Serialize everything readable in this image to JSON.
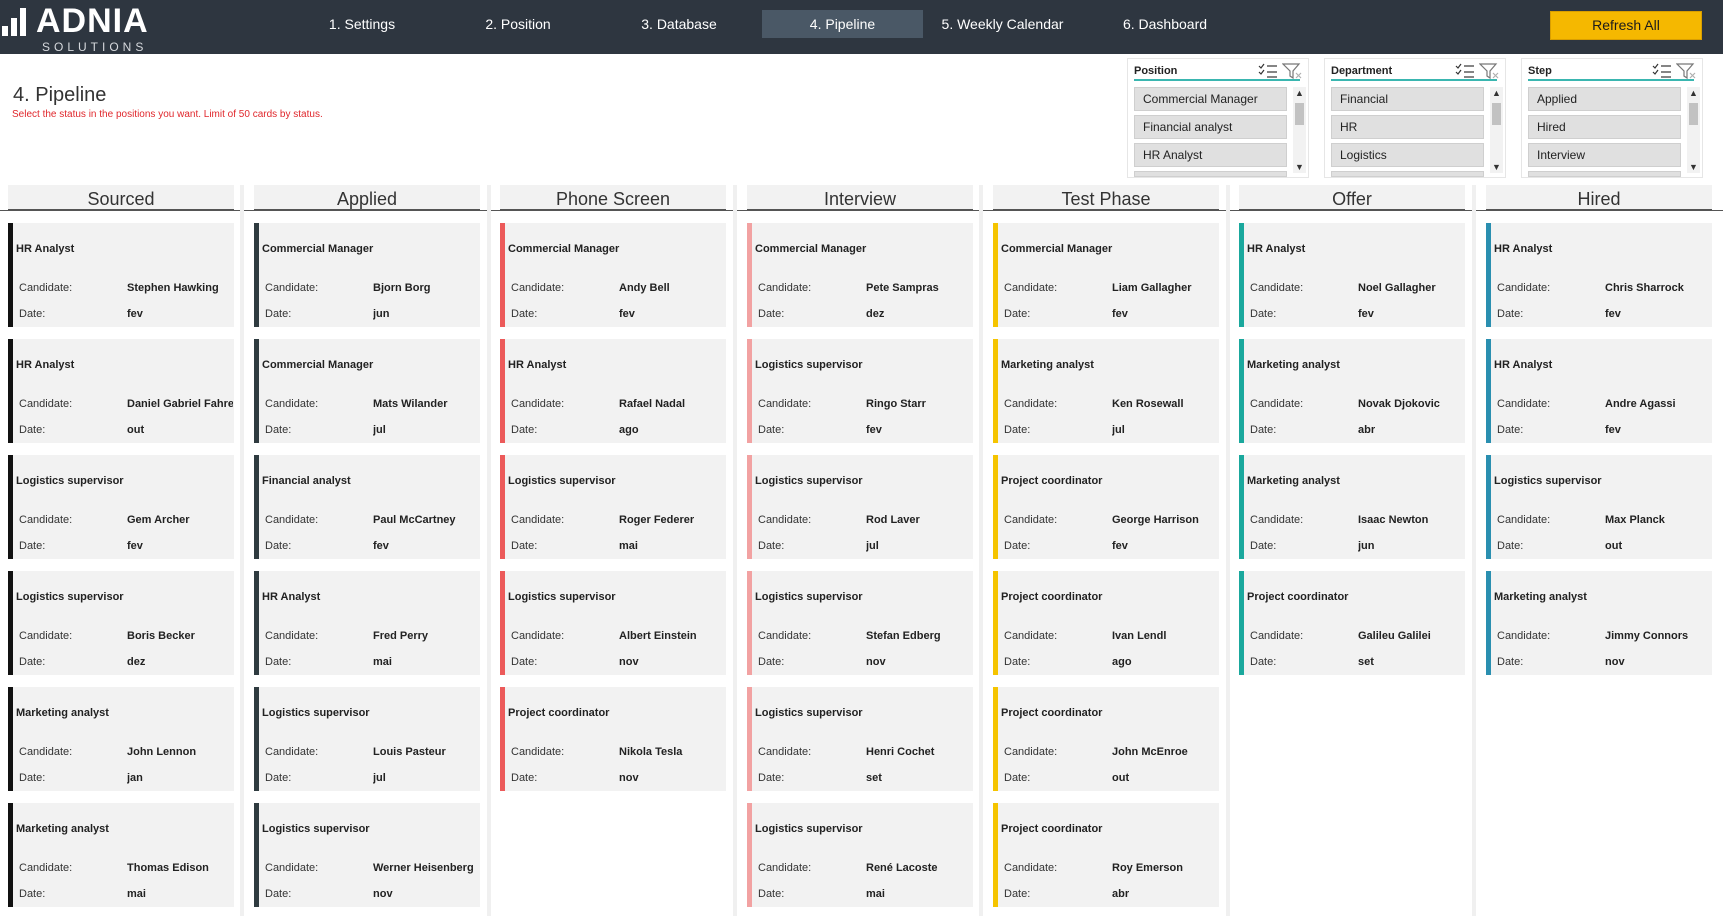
{
  "brand": {
    "name": "ADNIA",
    "tagline": "SOLUTIONS"
  },
  "nav": {
    "tabs": [
      {
        "label": "1. Settings"
      },
      {
        "label": "2. Position"
      },
      {
        "label": "3. Database"
      },
      {
        "label": "4. Pipeline",
        "active": true
      },
      {
        "label": "5. Weekly Calendar"
      },
      {
        "label": "6. Dashboard"
      }
    ],
    "refresh_label": "Refresh All"
  },
  "page": {
    "title": "4. Pipeline",
    "subtitle": "Select the status in the positions you want.  Limit of 50 cards by status."
  },
  "slicers": [
    {
      "title": "Position",
      "items": [
        "Commercial Manager",
        "Financial analyst",
        "HR Analyst"
      ]
    },
    {
      "title": "Department",
      "items": [
        "Financial",
        "HR",
        "Logistics"
      ]
    },
    {
      "title": "Step",
      "items": [
        "Applied",
        "Hired",
        "Interview"
      ]
    }
  ],
  "labels": {
    "candidate": "Candidate:",
    "date": "Date:"
  },
  "colors": {
    "sourced": "#111111",
    "applied": "#2f3b40",
    "phone": "#ec5a5a",
    "interview": "#f2a2a2",
    "test": "#f5c400",
    "offer": "#1aa89d",
    "hired": "#2a8fb0"
  },
  "columns": [
    {
      "name": "Sourced",
      "cards": [
        {
          "position": "HR Analyst",
          "candidate": "Stephen Hawking",
          "date": "fev"
        },
        {
          "position": "HR Analyst",
          "candidate": "Daniel Gabriel Fahrenheit",
          "date": "out"
        },
        {
          "position": "Logistics supervisor",
          "candidate": "Gem Archer",
          "date": "fev"
        },
        {
          "position": "Logistics supervisor",
          "candidate": "Boris Becker",
          "date": "dez"
        },
        {
          "position": "Marketing analyst",
          "candidate": " John Lennon",
          "date": "jan"
        },
        {
          "position": "Marketing analyst",
          "candidate": "Thomas Edison",
          "date": "mai"
        }
      ]
    },
    {
      "name": "Applied",
      "cards": [
        {
          "position": "Commercial Manager",
          "candidate": "Bjorn Borg",
          "date": "jun"
        },
        {
          "position": "Commercial Manager",
          "candidate": "Mats Wilander",
          "date": "jul"
        },
        {
          "position": "Financial analyst",
          "candidate": "Paul McCartney",
          "date": "fev"
        },
        {
          "position": "HR Analyst",
          "candidate": "Fred Perry",
          "date": "mai"
        },
        {
          "position": "Logistics supervisor",
          "candidate": "Louis Pasteur",
          "date": "jul"
        },
        {
          "position": "Logistics supervisor",
          "candidate": "Werner Heisenberg",
          "date": "nov"
        }
      ]
    },
    {
      "name": "Phone Screen",
      "cards": [
        {
          "position": "Commercial Manager",
          "candidate": "Andy Bell",
          "date": "fev"
        },
        {
          "position": "HR Analyst",
          "candidate": "Rafael Nadal",
          "date": "ago"
        },
        {
          "position": "Logistics supervisor",
          "candidate": "Roger Federer",
          "date": "mai"
        },
        {
          "position": "Logistics supervisor",
          "candidate": "Albert Einstein",
          "date": "nov"
        },
        {
          "position": "Project coordinator",
          "candidate": "Nikola Tesla",
          "date": "nov"
        }
      ]
    },
    {
      "name": "Interview",
      "cards": [
        {
          "position": "Commercial Manager",
          "candidate": "Pete Sampras",
          "date": "dez"
        },
        {
          "position": "Logistics supervisor",
          "candidate": "Ringo Starr",
          "date": "fev"
        },
        {
          "position": "Logistics supervisor",
          "candidate": "Rod Laver",
          "date": "jul"
        },
        {
          "position": "Logistics supervisor",
          "candidate": "Stefan Edberg",
          "date": "nov"
        },
        {
          "position": "Logistics supervisor",
          "candidate": "Henri Cochet",
          "date": "set"
        },
        {
          "position": "Logistics supervisor",
          "candidate": "René Lacoste",
          "date": "mai"
        }
      ]
    },
    {
      "name": "Test Phase",
      "cards": [
        {
          "position": "Commercial Manager",
          "candidate": "Liam Gallagher",
          "date": "fev"
        },
        {
          "position": "Marketing analyst",
          "candidate": "Ken Rosewall",
          "date": "jul"
        },
        {
          "position": "Project coordinator",
          "candidate": "George Harrison",
          "date": "fev"
        },
        {
          "position": "Project coordinator",
          "candidate": "Ivan Lendl",
          "date": "ago"
        },
        {
          "position": "Project coordinator",
          "candidate": "John McEnroe",
          "date": "out"
        },
        {
          "position": "Project coordinator",
          "candidate": "Roy Emerson",
          "date": "abr"
        }
      ]
    },
    {
      "name": "Offer",
      "cards": [
        {
          "position": "HR Analyst",
          "candidate": "Noel Gallagher",
          "date": "fev"
        },
        {
          "position": "Marketing analyst",
          "candidate": "Novak Djokovic",
          "date": "abr"
        },
        {
          "position": "Marketing analyst",
          "candidate": "Isaac Newton",
          "date": "jun"
        },
        {
          "position": "Project coordinator",
          "candidate": "Galileu Galilei",
          "date": "set"
        }
      ]
    },
    {
      "name": "Hired",
      "cards": [
        {
          "position": "HR Analyst",
          "candidate": "Chris Sharrock",
          "date": "fev"
        },
        {
          "position": "HR Analyst",
          "candidate": "Andre Agassi",
          "date": "fev"
        },
        {
          "position": "Logistics supervisor",
          "candidate": "Max Planck",
          "date": "out"
        },
        {
          "position": "Marketing analyst",
          "candidate": "Jimmy Connors",
          "date": "nov"
        }
      ]
    }
  ]
}
